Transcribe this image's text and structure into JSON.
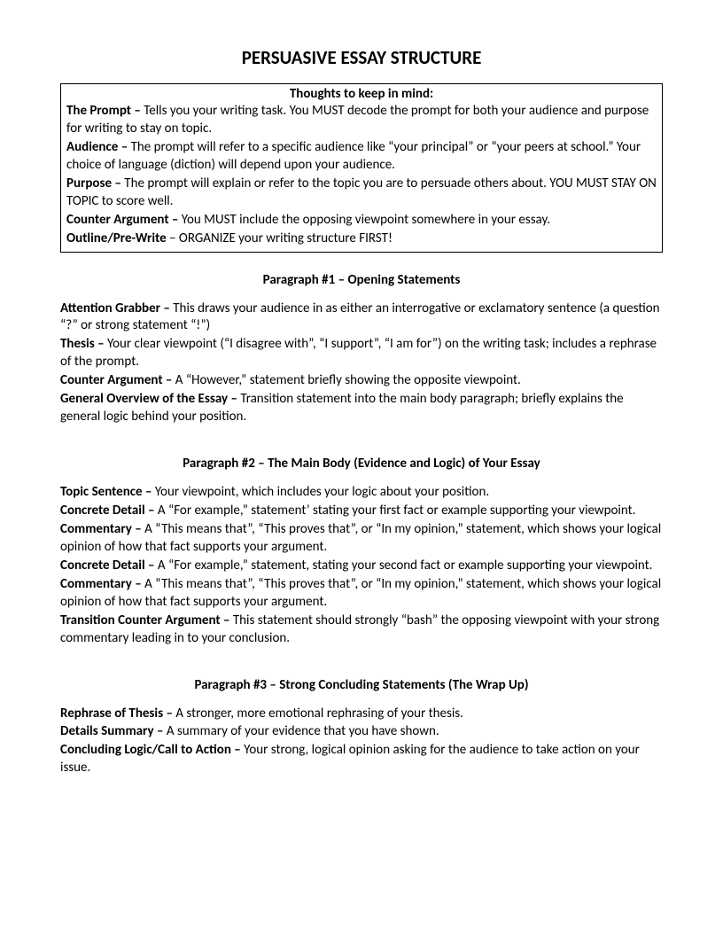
{
  "title": "PERSUASIVE ESSAY STRUCTURE",
  "box": {
    "heading": "Thoughts to keep in mind:",
    "items": [
      {
        "term": "The Prompt – ",
        "desc": "Tells you your writing task.  You MUST decode the prompt for both your audience and purpose for writing to stay on topic."
      },
      {
        "term": "Audience – ",
        "desc": "The prompt will refer to a specific audience like “your principal” or “your peers at school.”  Your choice of language (diction) will depend upon your audience."
      },
      {
        "term": "Purpose – ",
        "desc": "The prompt will explain or refer to the topic you are to persuade others about.  YOU MUST STAY ON TOPIC to score well."
      },
      {
        "term": "Counter Argument – ",
        "desc": "You MUST include the opposing viewpoint somewhere in your essay."
      },
      {
        "term": "Outline/Pre-Write",
        "desc": " – ORGANIZE your writing structure FIRST!"
      }
    ]
  },
  "sections": [
    {
      "heading": "Paragraph #1 – Opening Statements",
      "items": [
        {
          "term": "Attention Grabber – ",
          "desc": "This draws your audience in as either an interrogative or exclamatory sentence (a question “?” or strong statement “!”)"
        },
        {
          "term": "Thesis – ",
          "desc": "Your clear viewpoint (“I disagree with”, “I support”, “I am for”) on the writing task; includes a rephrase of the prompt."
        },
        {
          "term": "Counter Argument – ",
          "desc": "A “However,” statement briefly showing the opposite viewpoint."
        },
        {
          "term": "General Overview of the Essay – ",
          "desc": "Transition statement into the main body paragraph; briefly explains the general logic behind your position."
        }
      ]
    },
    {
      "heading": "Paragraph #2 – The Main Body (Evidence and Logic) of Your Essay",
      "items": [
        {
          "term": "Topic Sentence – ",
          "desc": "Your viewpoint, which includes your logic about your position."
        },
        {
          "term": "Concrete Detail – ",
          "desc": "A “For example,” statement’ stating your first fact or example supporting your viewpoint."
        },
        {
          "term": "Commentary – ",
          "desc": "A “This means that”, “This proves that”, or “In my opinion,” statement, which shows your logical opinion of how that fact supports your argument."
        },
        {
          "term": "Concrete Detail – ",
          "desc": "A “For example,” statement, stating your second fact or example supporting your viewpoint."
        },
        {
          "term": "Commentary – ",
          "desc": "A “This means that”, “This proves that”, or “In my opinion,” statement, which shows your logical opinion of how that fact supports your argument."
        },
        {
          "term": "Transition Counter Argument – ",
          "desc": "This statement should strongly “bash” the opposing viewpoint with your strong commentary leading in to your conclusion."
        }
      ]
    },
    {
      "heading": "Paragraph #3 – Strong Concluding Statements (The Wrap Up)",
      "items": [
        {
          "term": "Rephrase of Thesis – ",
          "desc": "A stronger, more emotional rephrasing of your thesis."
        },
        {
          "term": "Details Summary – ",
          "desc": "A summary of your evidence that you have shown."
        },
        {
          "term": "Concluding Logic/Call to Action – ",
          "desc": "Your strong, logical opinion asking for the audience to take action on your issue."
        }
      ]
    }
  ]
}
